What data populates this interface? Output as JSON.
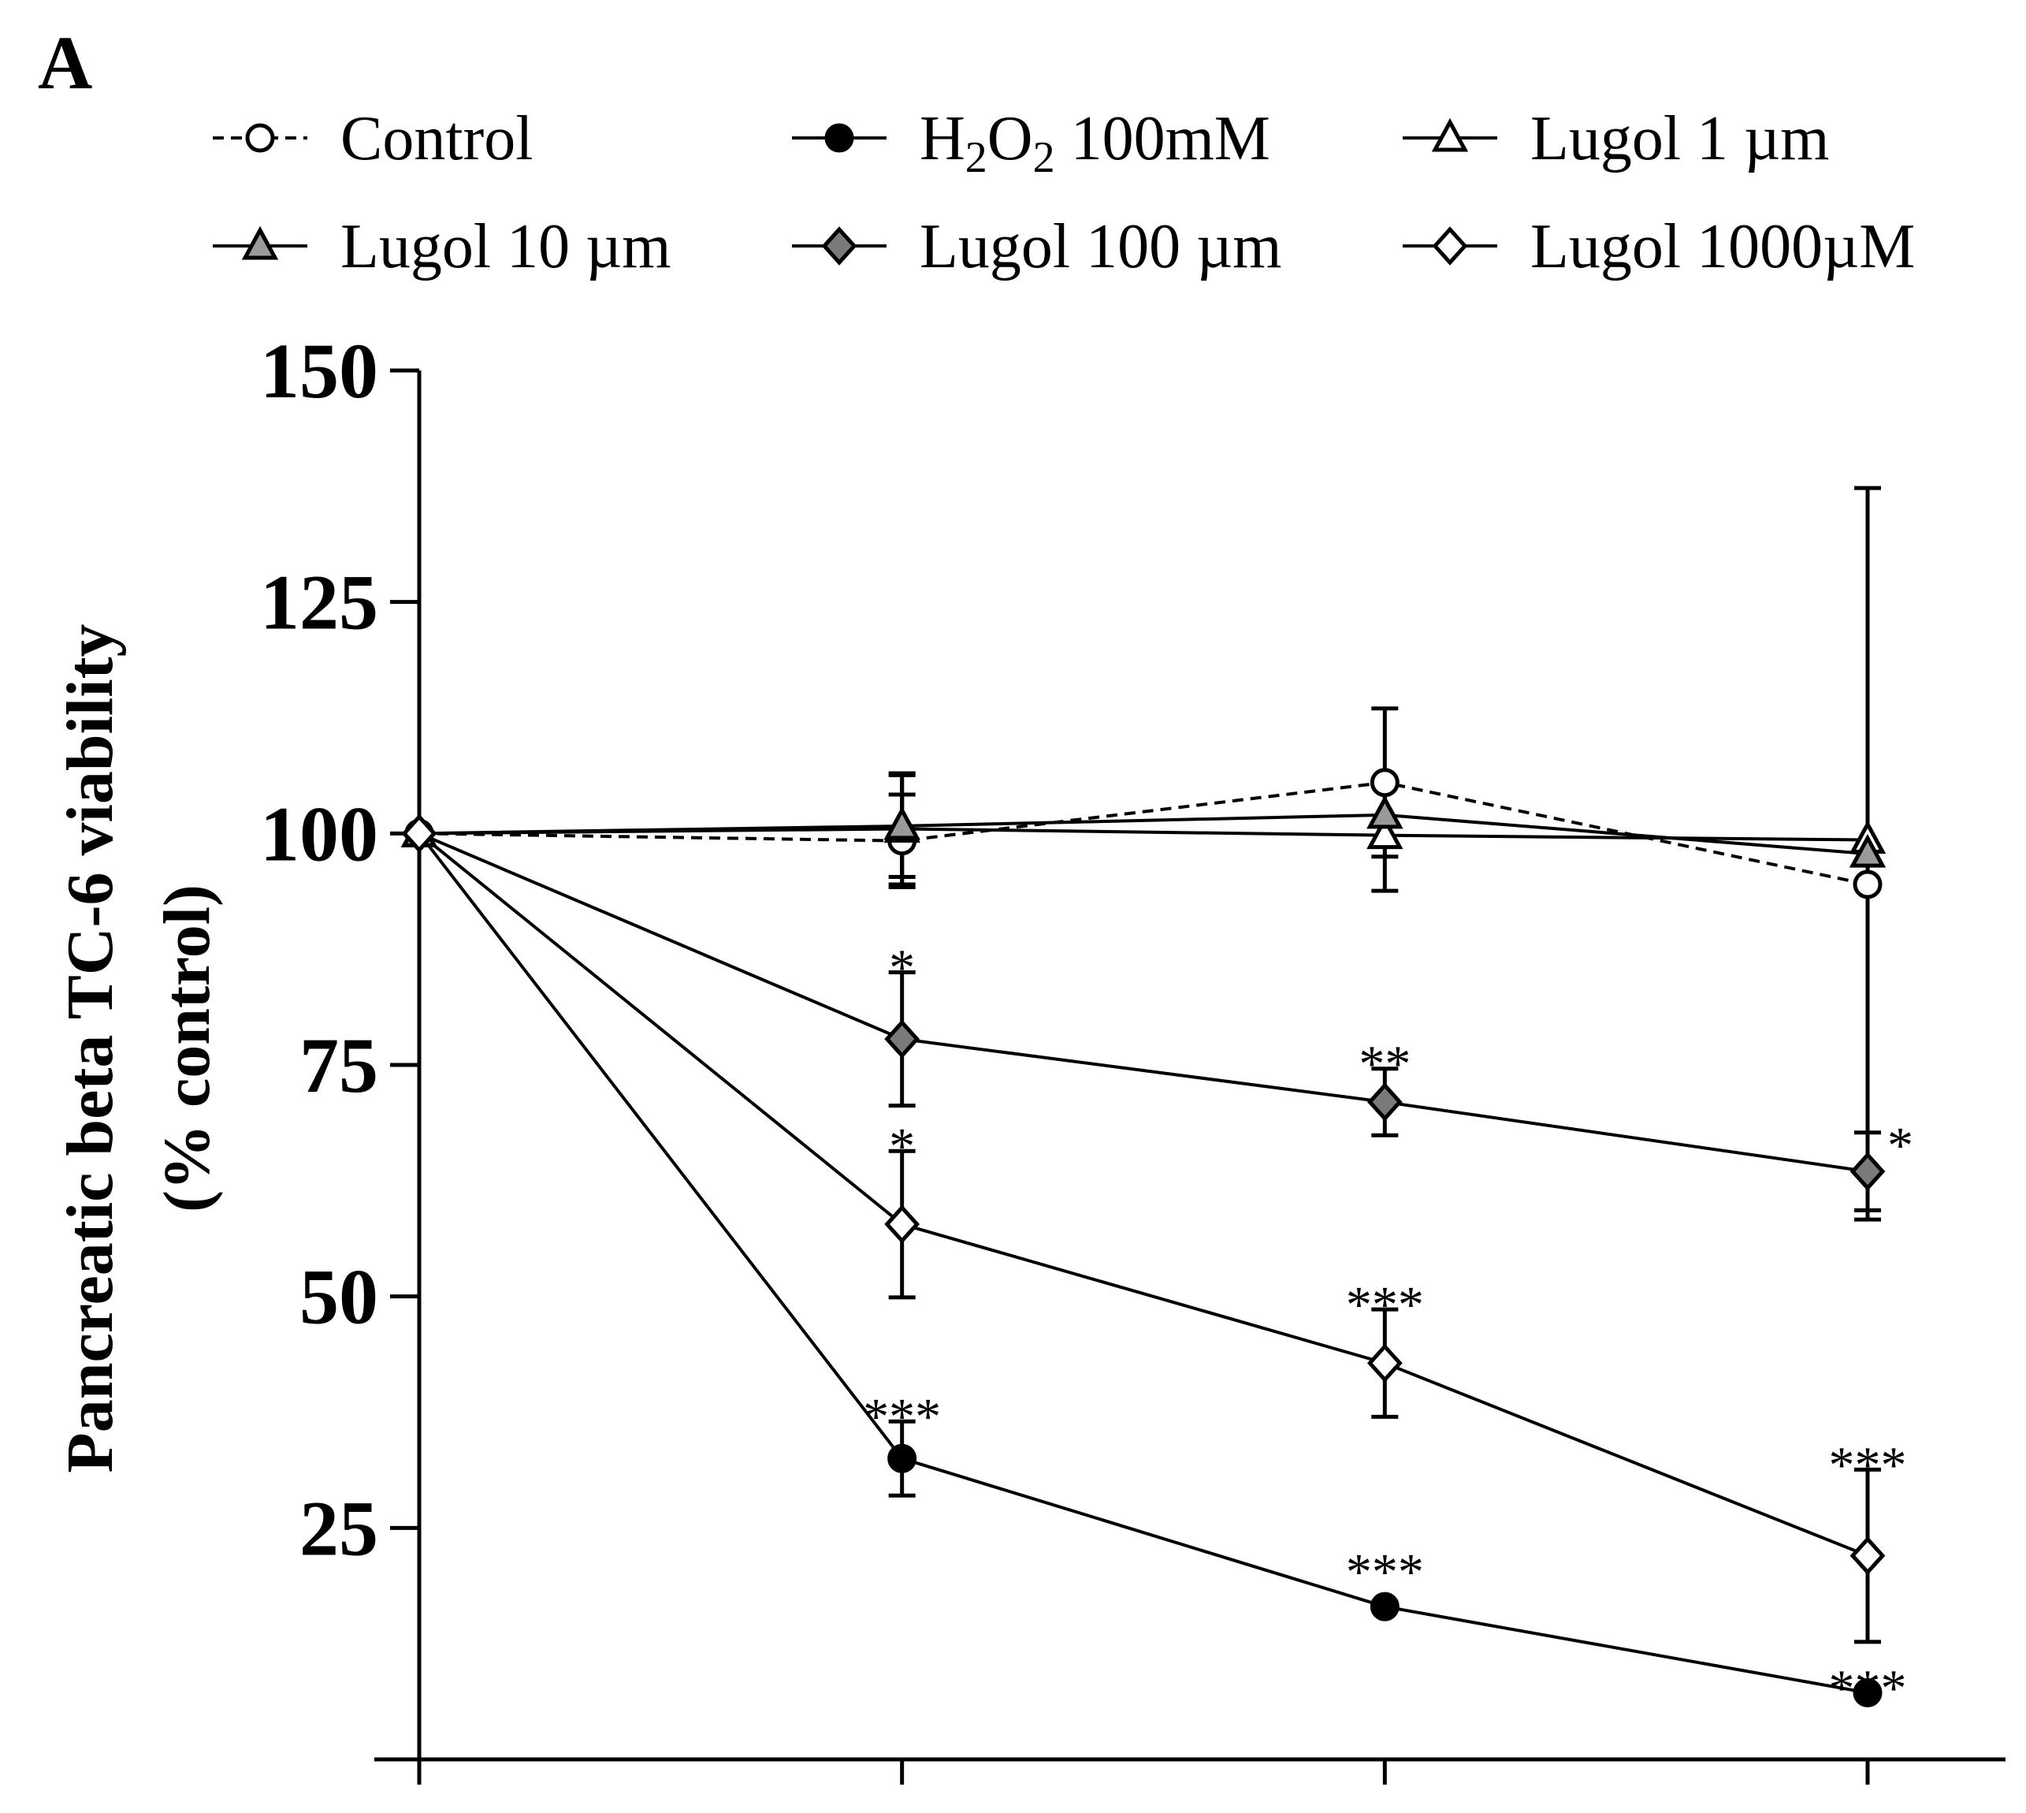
{
  "chart_data": {
    "type": "line",
    "panel_label": "A",
    "title": "",
    "xlabel": "",
    "ylabel": "Pancreatic beta TC-6 viability",
    "ylabel_line2": "(% control)",
    "x": [
      0,
      1,
      2,
      3
    ],
    "xlim": [
      0,
      3
    ],
    "ylim": [
      0,
      150
    ],
    "yticks": [
      25,
      50,
      75,
      100,
      125,
      150
    ],
    "series": [
      {
        "name": "Control",
        "legend_label": "Control",
        "values": [
          100,
          99.2,
          105.5,
          94.5
        ],
        "errors": [
          0,
          5,
          8,
          0
        ],
        "marker": "circle",
        "fill": "#ffffff",
        "dashed": true,
        "significance": [
          "",
          "",
          "",
          ""
        ]
      },
      {
        "name": "H2O2 100mM",
        "legend_main": "H",
        "legend_sub1": "2",
        "legend_mid": "O",
        "legend_sub2": "2",
        "legend_tail": " 100mM",
        "values": [
          100,
          32.5,
          16.5,
          7.2
        ],
        "errors": [
          0,
          4,
          0,
          0
        ],
        "marker": "circle",
        "fill": "#000000",
        "dashed": false,
        "significance": [
          "",
          "***",
          "***",
          "***"
        ]
      },
      {
        "name": "Lugol 1 µm",
        "legend_label": "Lugol 1 µm",
        "values": [
          100,
          100.5,
          99.8,
          99.3
        ],
        "errors": [
          0,
          6,
          6,
          0
        ],
        "marker": "triangle",
        "fill": "#ffffff",
        "dashed": false,
        "significance": [
          "",
          "",
          "",
          ""
        ]
      },
      {
        "name": "Lugol 10 µm",
        "legend_label": "Lugol 10 µm",
        "values": [
          100,
          100.8,
          102,
          97.8
        ],
        "errors": [
          0,
          5.5,
          0,
          39.5
        ],
        "marker": "triangle",
        "fill": "#9a9a9a",
        "dashed": false,
        "significance": [
          "",
          "",
          "",
          ""
        ]
      },
      {
        "name": "Lugol 100 µm",
        "legend_label": "Lugol 100 µm",
        "values": [
          100,
          77.8,
          71,
          63.5
        ],
        "errors": [
          0,
          7.2,
          3.6,
          4.2
        ],
        "marker": "diamond",
        "fill": "#7a7a7a",
        "dashed": false,
        "significance": [
          "",
          "*",
          "**",
          "*"
        ]
      },
      {
        "name": "Lugol 1000µM",
        "legend_label": "Lugol 1000µM",
        "values": [
          100,
          57.8,
          42.8,
          22
        ],
        "errors": [
          0,
          7.9,
          5.8,
          9.3
        ],
        "marker": "diamond",
        "fill": "#ffffff",
        "dashed": false,
        "significance": [
          "",
          "*",
          "***",
          "***"
        ]
      }
    ]
  }
}
